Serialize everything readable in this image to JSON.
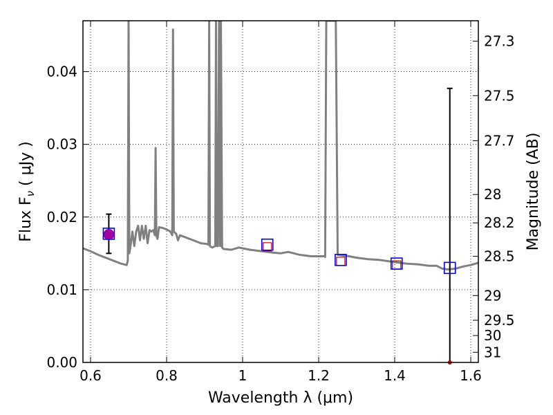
{
  "chart_data": {
    "type": "line",
    "title": "",
    "xlabel": "Wavelength  λ (μm)",
    "ylabel": "Flux  F",
    "ylabel_sub": "ν",
    "ylabel_unit": "  ( μJy )",
    "ylabel_right": "Magnitude (AB)",
    "xlim": [
      0.58,
      1.62
    ],
    "ylim": [
      0.0,
      0.047
    ],
    "grid": true,
    "x_ticks": [
      0.6,
      0.8,
      1.0,
      1.2,
      1.4,
      1.6
    ],
    "x_tick_labels": [
      "0.6",
      "0.8",
      "1",
      "1.2",
      "1.4",
      "1.6"
    ],
    "y_ticks": [
      0.0,
      0.01,
      0.02,
      0.03,
      0.04
    ],
    "y_tick_labels": [
      "0.00",
      "0.01",
      "0.02",
      "0.03",
      "0.04"
    ],
    "right_ticks": [
      {
        "label": "27.3",
        "flux": 0.0442
      },
      {
        "label": "27.5",
        "flux": 0.0367
      },
      {
        "label": "27.7",
        "flux": 0.0305
      },
      {
        "label": "28",
        "flux": 0.0231
      },
      {
        "label": "28.2",
        "flux": 0.0192
      },
      {
        "label": "28.5",
        "flux": 0.0146
      },
      {
        "label": "29",
        "flux": 0.0092
      },
      {
        "label": "29.5",
        "flux": 0.0058
      },
      {
        "label": "30",
        "flux": 0.0037
      },
      {
        "label": "31",
        "flux": 0.0014
      }
    ],
    "model_sed": {
      "color": "#808080",
      "points": [
        [
          0.58,
          0.0157
        ],
        [
          0.6,
          0.0153
        ],
        [
          0.62,
          0.0148
        ],
        [
          0.64,
          0.0144
        ],
        [
          0.66,
          0.014
        ],
        [
          0.68,
          0.0136
        ],
        [
          0.695,
          0.0134
        ],
        [
          0.698,
          0.014
        ],
        [
          0.7,
          0.047
        ],
        [
          0.702,
          0.015
        ],
        [
          0.705,
          0.016
        ],
        [
          0.71,
          0.018
        ],
        [
          0.715,
          0.016
        ],
        [
          0.72,
          0.018
        ],
        [
          0.725,
          0.0188
        ],
        [
          0.73,
          0.0168
        ],
        [
          0.735,
          0.0188
        ],
        [
          0.74,
          0.017
        ],
        [
          0.745,
          0.0188
        ],
        [
          0.75,
          0.0164
        ],
        [
          0.755,
          0.0182
        ],
        [
          0.76,
          0.018
        ],
        [
          0.765,
          0.0182
        ],
        [
          0.769,
          0.0175
        ],
        [
          0.771,
          0.0295
        ],
        [
          0.773,
          0.0175
        ],
        [
          0.776,
          0.017
        ],
        [
          0.78,
          0.0186
        ],
        [
          0.79,
          0.0185
        ],
        [
          0.8,
          0.0183
        ],
        [
          0.81,
          0.018
        ],
        [
          0.815,
          0.0175
        ],
        [
          0.817,
          0.0458
        ],
        [
          0.819,
          0.018
        ],
        [
          0.825,
          0.0177
        ],
        [
          0.83,
          0.0168
        ],
        [
          0.835,
          0.0175
        ],
        [
          0.85,
          0.0172
        ],
        [
          0.87,
          0.0168
        ],
        [
          0.89,
          0.0164
        ],
        [
          0.905,
          0.0163
        ],
        [
          0.91,
          0.0162
        ],
        [
          0.912,
          0.047
        ],
        [
          0.914,
          0.016
        ],
        [
          0.92,
          0.0158
        ],
        [
          0.928,
          0.016
        ],
        [
          0.93,
          0.047
        ],
        [
          0.932,
          0.016
        ],
        [
          0.935,
          0.016
        ],
        [
          0.938,
          0.047
        ],
        [
          0.941,
          0.016
        ],
        [
          0.943,
          0.047
        ],
        [
          0.946,
          0.0158
        ],
        [
          0.95,
          0.0156
        ],
        [
          0.97,
          0.0155
        ],
        [
          0.99,
          0.0158
        ],
        [
          1.0,
          0.0157
        ],
        [
          1.02,
          0.0155
        ],
        [
          1.05,
          0.0153
        ],
        [
          1.08,
          0.0151
        ],
        [
          1.1,
          0.015
        ],
        [
          1.12,
          0.0152
        ],
        [
          1.15,
          0.0148
        ],
        [
          1.18,
          0.0146
        ],
        [
          1.2,
          0.0146
        ],
        [
          1.215,
          0.0146
        ],
        [
          1.217,
          0.0145
        ],
        [
          1.22,
          0.047
        ],
        [
          1.245,
          0.047
        ],
        [
          1.25,
          0.0148
        ],
        [
          1.28,
          0.0146
        ],
        [
          1.3,
          0.0144
        ],
        [
          1.33,
          0.0142
        ],
        [
          1.36,
          0.0141
        ],
        [
          1.4,
          0.0138
        ],
        [
          1.43,
          0.0136
        ],
        [
          1.46,
          0.0135
        ],
        [
          1.49,
          0.0133
        ],
        [
          1.51,
          0.0133
        ],
        [
          1.525,
          0.0129
        ],
        [
          1.54,
          0.0128
        ],
        [
          1.56,
          0.0129
        ],
        [
          1.58,
          0.0132
        ],
        [
          1.6,
          0.0134
        ],
        [
          1.62,
          0.0137
        ]
      ]
    },
    "observed": {
      "color": "#a000a0",
      "points": [
        {
          "x": 0.648,
          "y": 0.0176,
          "yerr_low": 0.015,
          "yerr_high": 0.0204
        }
      ]
    },
    "model_photometry": {
      "color": "#0000ff",
      "points": [
        {
          "x": 0.648,
          "y": 0.0177
        },
        {
          "x": 1.065,
          "y": 0.0162
        },
        {
          "x": 1.258,
          "y": 0.0141
        },
        {
          "x": 1.405,
          "y": 0.0136
        },
        {
          "x": 1.545,
          "y": 0.013
        }
      ]
    },
    "upper_limit_points": {
      "color": "#c00000",
      "points": [
        {
          "x": 1.065,
          "y": 0.0159
        },
        {
          "x": 1.258,
          "y": 0.0139
        },
        {
          "x": 1.405,
          "y": 0.0134
        }
      ]
    },
    "nondetection": {
      "color": "#c00000",
      "x": 1.545,
      "y": 0.0,
      "yerr_high": 0.0377
    }
  }
}
